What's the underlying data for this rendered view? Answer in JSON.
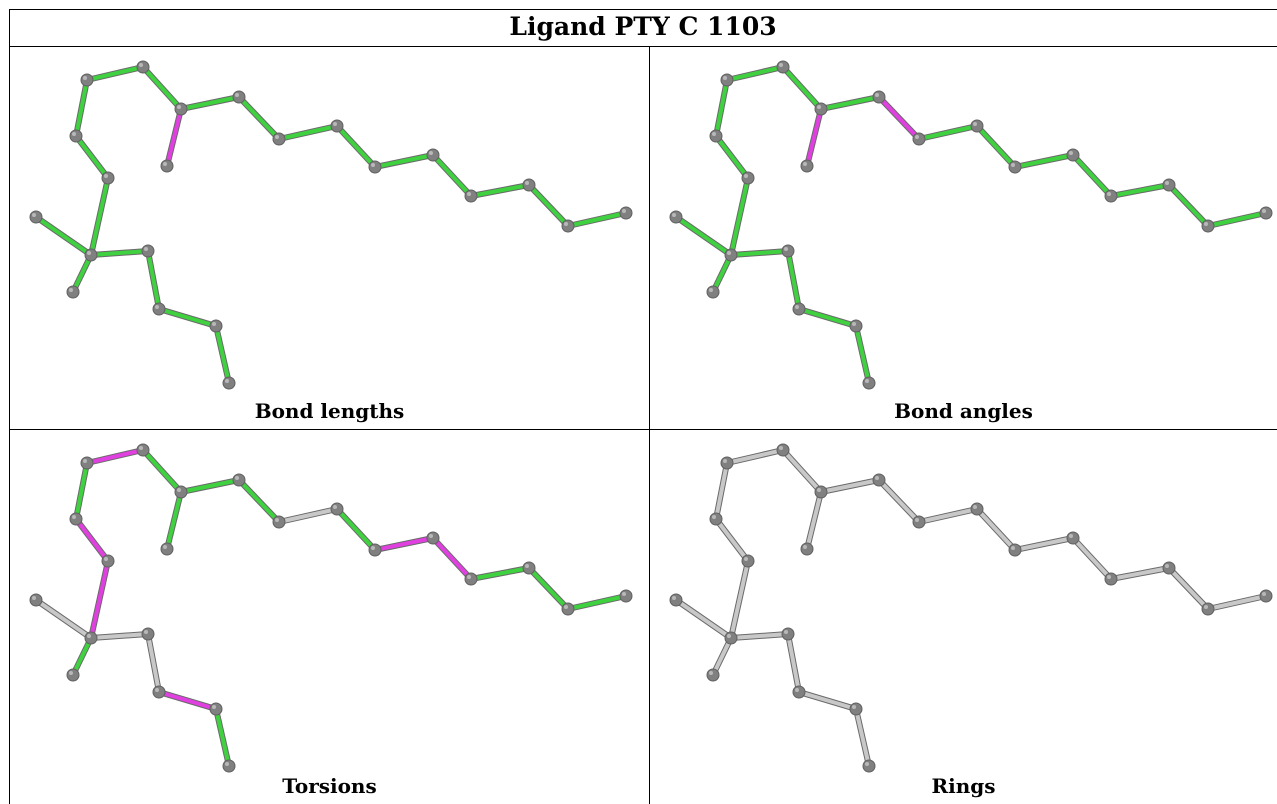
{
  "title": "Ligand PTY C 1103",
  "panels": [
    {
      "caption": "Bond lengths",
      "colors": [
        "g",
        "g",
        "g",
        "g",
        "p",
        "g",
        "g",
        "g",
        "g",
        "g",
        "g",
        "g",
        "g",
        "g",
        "g",
        "g",
        "g",
        "g",
        "g",
        "g",
        "g",
        "g",
        "g",
        "g"
      ]
    },
    {
      "caption": "Bond angles",
      "colors": [
        "g",
        "g",
        "g",
        "g",
        "p",
        "p",
        "g",
        "g",
        "g",
        "g",
        "g",
        "g",
        "g",
        "g",
        "g",
        "g",
        "g",
        "g",
        "g",
        "g",
        "g",
        "g",
        "g",
        "g"
      ]
    },
    {
      "caption": "Torsions",
      "colors": [
        "g",
        "p",
        "g",
        "g",
        "g",
        "g",
        "w",
        "g",
        "p",
        "p",
        "g",
        "g",
        "g",
        "p",
        "p",
        "w",
        "g",
        "w",
        "w",
        "p",
        "g",
        "p",
        "w",
        "g"
      ]
    },
    {
      "caption": "Rings",
      "colors": [
        "w",
        "w",
        "w",
        "w",
        "w",
        "w",
        "w",
        "w",
        "w",
        "w",
        "w",
        "w",
        "w",
        "w",
        "w",
        "w",
        "w",
        "w",
        "w",
        "w",
        "w",
        "w",
        "w",
        "w"
      ]
    }
  ],
  "bond_colors": {
    "g": "#3fd13f",
    "p": "#e040e0",
    "w": "#c8c8c8"
  },
  "atom_color": "#808080"
}
